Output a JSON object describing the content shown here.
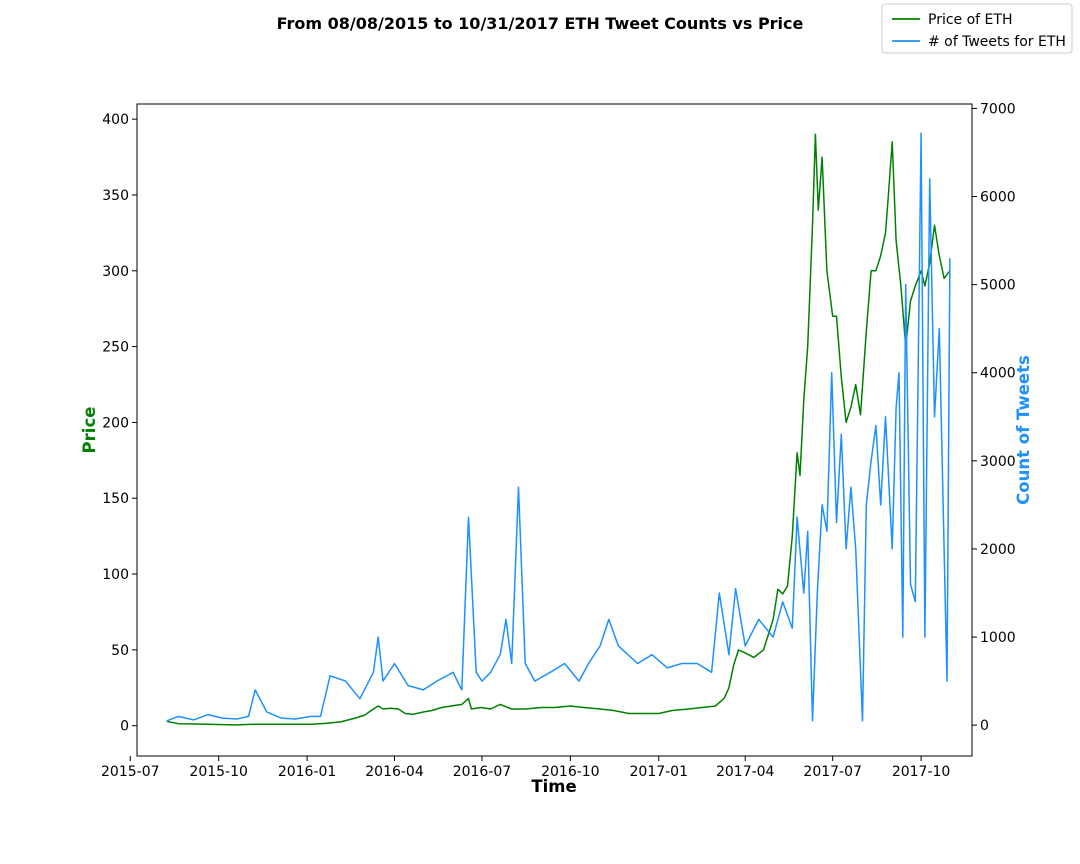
{
  "chart_data": {
    "type": "line",
    "title": "From 08/08/2015 to 10/31/2017 ETH Tweet Counts vs Price",
    "xlabel": "Time",
    "ylabel_left": "Price",
    "ylabel_right": "Count of Tweets",
    "x_tick_labels": [
      "2015-07",
      "2015-10",
      "2016-01",
      "2016-04",
      "2016-07",
      "2016-10",
      "2017-01",
      "2017-04",
      "2017-07",
      "2017-10"
    ],
    "y_left_ticks": [
      0,
      50,
      100,
      150,
      200,
      250,
      300,
      350,
      400
    ],
    "y_right_ticks": [
      0,
      1000,
      2000,
      3000,
      4000,
      5000,
      6000,
      7000
    ],
    "xlim": [
      "2015-07-08",
      "2017-11-23"
    ],
    "ylim_left": [
      -20,
      410
    ],
    "ylim_right": [
      -350,
      7050
    ],
    "legend_position": "top-right",
    "colors": {
      "price": "#008000",
      "tweets": "#1e90ff"
    },
    "series": [
      {
        "name": "Price of ETH",
        "axis": "left",
        "points": [
          [
            "2015-08-08",
            2.8
          ],
          [
            "2015-08-20",
            1.3
          ],
          [
            "2015-09-05",
            1.1
          ],
          [
            "2015-09-20",
            0.9
          ],
          [
            "2015-10-05",
            0.7
          ],
          [
            "2015-10-21",
            0.5
          ],
          [
            "2015-11-05",
            1.0
          ],
          [
            "2015-11-20",
            0.9
          ],
          [
            "2015-12-05",
            0.9
          ],
          [
            "2015-12-20",
            0.9
          ],
          [
            "2016-01-05",
            0.95
          ],
          [
            "2016-01-20",
            1.5
          ],
          [
            "2016-02-05",
            2.5
          ],
          [
            "2016-02-20",
            5
          ],
          [
            "2016-03-01",
            7
          ],
          [
            "2016-03-10",
            11
          ],
          [
            "2016-03-15",
            13
          ],
          [
            "2016-03-20",
            11
          ],
          [
            "2016-03-28",
            11.5
          ],
          [
            "2016-04-05",
            11
          ],
          [
            "2016-04-12",
            8
          ],
          [
            "2016-04-20",
            7.5
          ],
          [
            "2016-05-01",
            9
          ],
          [
            "2016-05-10",
            10
          ],
          [
            "2016-05-20",
            12
          ],
          [
            "2016-05-30",
            13
          ],
          [
            "2016-06-10",
            14
          ],
          [
            "2016-06-17",
            18
          ],
          [
            "2016-06-20",
            11
          ],
          [
            "2016-06-30",
            12
          ],
          [
            "2016-07-10",
            11
          ],
          [
            "2016-07-20",
            14
          ],
          [
            "2016-08-01",
            11
          ],
          [
            "2016-08-15",
            11
          ],
          [
            "2016-09-01",
            12
          ],
          [
            "2016-09-15",
            12
          ],
          [
            "2016-10-01",
            13
          ],
          [
            "2016-10-15",
            12
          ],
          [
            "2016-11-01",
            11
          ],
          [
            "2016-11-15",
            10
          ],
          [
            "2016-12-01",
            8
          ],
          [
            "2016-12-15",
            8
          ],
          [
            "2017-01-01",
            8
          ],
          [
            "2017-01-15",
            10
          ],
          [
            "2017-02-01",
            11
          ],
          [
            "2017-02-15",
            12
          ],
          [
            "2017-03-01",
            13
          ],
          [
            "2017-03-10",
            18
          ],
          [
            "2017-03-15",
            25
          ],
          [
            "2017-03-20",
            40
          ],
          [
            "2017-03-25",
            50
          ],
          [
            "2017-04-01",
            48
          ],
          [
            "2017-04-10",
            45
          ],
          [
            "2017-04-20",
            50
          ],
          [
            "2017-04-30",
            70
          ],
          [
            "2017-05-05",
            90
          ],
          [
            "2017-05-10",
            87
          ],
          [
            "2017-05-15",
            92
          ],
          [
            "2017-05-20",
            125
          ],
          [
            "2017-05-25",
            180
          ],
          [
            "2017-05-28",
            165
          ],
          [
            "2017-06-01",
            215
          ],
          [
            "2017-06-05",
            250
          ],
          [
            "2017-06-10",
            330
          ],
          [
            "2017-06-13",
            390
          ],
          [
            "2017-06-16",
            340
          ],
          [
            "2017-06-20",
            375
          ],
          [
            "2017-06-25",
            300
          ],
          [
            "2017-07-01",
            270
          ],
          [
            "2017-07-05",
            270
          ],
          [
            "2017-07-10",
            230
          ],
          [
            "2017-07-15",
            200
          ],
          [
            "2017-07-20",
            210
          ],
          [
            "2017-07-25",
            225
          ],
          [
            "2017-07-30",
            205
          ],
          [
            "2017-08-05",
            260
          ],
          [
            "2017-08-10",
            300
          ],
          [
            "2017-08-15",
            300
          ],
          [
            "2017-08-20",
            310
          ],
          [
            "2017-08-25",
            325
          ],
          [
            "2017-08-28",
            350
          ],
          [
            "2017-09-01",
            385
          ],
          [
            "2017-09-05",
            320
          ],
          [
            "2017-09-10",
            290
          ],
          [
            "2017-09-15",
            250
          ],
          [
            "2017-09-20",
            280
          ],
          [
            "2017-09-25",
            290
          ],
          [
            "2017-10-01",
            300
          ],
          [
            "2017-10-05",
            290
          ],
          [
            "2017-10-10",
            305
          ],
          [
            "2017-10-15",
            330
          ],
          [
            "2017-10-20",
            310
          ],
          [
            "2017-10-25",
            295
          ],
          [
            "2017-10-31",
            300
          ]
        ]
      },
      {
        "name": "# of Tweets for ETH",
        "axis": "right",
        "points": [
          [
            "2015-08-08",
            50
          ],
          [
            "2015-08-20",
            100
          ],
          [
            "2015-09-05",
            60
          ],
          [
            "2015-09-20",
            120
          ],
          [
            "2015-10-05",
            80
          ],
          [
            "2015-10-20",
            70
          ],
          [
            "2015-11-01",
            100
          ],
          [
            "2015-11-08",
            400
          ],
          [
            "2015-11-20",
            150
          ],
          [
            "2015-12-05",
            80
          ],
          [
            "2015-12-20",
            70
          ],
          [
            "2016-01-05",
            100
          ],
          [
            "2016-01-15",
            100
          ],
          [
            "2016-01-25",
            560
          ],
          [
            "2016-02-10",
            500
          ],
          [
            "2016-02-25",
            300
          ],
          [
            "2016-03-10",
            600
          ],
          [
            "2016-03-15",
            1000
          ],
          [
            "2016-03-20",
            500
          ],
          [
            "2016-04-01",
            700
          ],
          [
            "2016-04-15",
            450
          ],
          [
            "2016-05-01",
            400
          ],
          [
            "2016-05-15",
            500
          ],
          [
            "2016-06-01",
            600
          ],
          [
            "2016-06-10",
            400
          ],
          [
            "2016-06-17",
            2360
          ],
          [
            "2016-06-25",
            600
          ],
          [
            "2016-07-01",
            500
          ],
          [
            "2016-07-10",
            600
          ],
          [
            "2016-07-20",
            800
          ],
          [
            "2016-07-26",
            1200
          ],
          [
            "2016-08-01",
            700
          ],
          [
            "2016-08-08",
            2700
          ],
          [
            "2016-08-15",
            700
          ],
          [
            "2016-08-25",
            500
          ],
          [
            "2016-09-10",
            600
          ],
          [
            "2016-09-25",
            700
          ],
          [
            "2016-10-10",
            500
          ],
          [
            "2016-10-20",
            700
          ],
          [
            "2016-11-01",
            900
          ],
          [
            "2016-11-10",
            1200
          ],
          [
            "2016-11-20",
            900
          ],
          [
            "2016-12-10",
            700
          ],
          [
            "2016-12-25",
            800
          ],
          [
            "2017-01-10",
            650
          ],
          [
            "2017-01-25",
            700
          ],
          [
            "2017-02-10",
            700
          ],
          [
            "2017-02-25",
            600
          ],
          [
            "2017-03-05",
            1500
          ],
          [
            "2017-03-15",
            800
          ],
          [
            "2017-03-22",
            1550
          ],
          [
            "2017-04-01",
            900
          ],
          [
            "2017-04-15",
            1200
          ],
          [
            "2017-04-30",
            1000
          ],
          [
            "2017-05-10",
            1400
          ],
          [
            "2017-05-20",
            1100
          ],
          [
            "2017-05-25",
            2360
          ],
          [
            "2017-06-01",
            1500
          ],
          [
            "2017-06-05",
            2200
          ],
          [
            "2017-06-10",
            50
          ],
          [
            "2017-06-15",
            1500
          ],
          [
            "2017-06-20",
            2500
          ],
          [
            "2017-06-25",
            2200
          ],
          [
            "2017-06-30",
            4000
          ],
          [
            "2017-07-05",
            2300
          ],
          [
            "2017-07-10",
            3300
          ],
          [
            "2017-07-15",
            2000
          ],
          [
            "2017-07-20",
            2700
          ],
          [
            "2017-07-25",
            2000
          ],
          [
            "2017-08-01",
            50
          ],
          [
            "2017-08-05",
            2500
          ],
          [
            "2017-08-10",
            3000
          ],
          [
            "2017-08-15",
            3400
          ],
          [
            "2017-08-20",
            2500
          ],
          [
            "2017-08-25",
            3500
          ],
          [
            "2017-09-01",
            2000
          ],
          [
            "2017-09-05",
            3600
          ],
          [
            "2017-09-08",
            4000
          ],
          [
            "2017-09-12",
            1000
          ],
          [
            "2017-09-15",
            5000
          ],
          [
            "2017-09-20",
            1600
          ],
          [
            "2017-09-25",
            1400
          ],
          [
            "2017-10-01",
            6720
          ],
          [
            "2017-10-05",
            1000
          ],
          [
            "2017-10-10",
            6200
          ],
          [
            "2017-10-15",
            3500
          ],
          [
            "2017-10-20",
            4500
          ],
          [
            "2017-10-25",
            2000
          ],
          [
            "2017-10-28",
            500
          ],
          [
            "2017-10-31",
            5300
          ]
        ]
      }
    ]
  }
}
